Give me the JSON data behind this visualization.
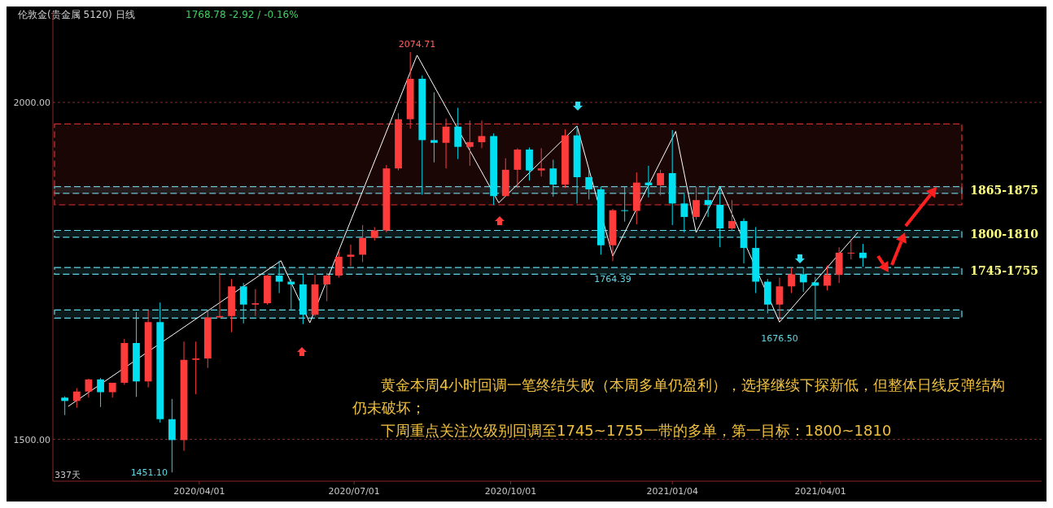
{
  "chart_data": {
    "type": "candlestick",
    "title": "伦敦金(贵金属 5120)  日线",
    "subtitle": "1768.78  -2.92 / -0.16%",
    "xlim": [
      "2020-01-06",
      "2021-08-09"
    ],
    "xticks": [
      {
        "value": "2020-04-01",
        "label": "2020/04/01"
      },
      {
        "value": "2020-07-01",
        "label": "2020/07/01"
      },
      {
        "value": "2020-10-01",
        "label": "2020/10/01"
      },
      {
        "value": "2021-01-04",
        "label": "2021/01/04"
      },
      {
        "value": "2021-04-01",
        "label": "2021/04/01"
      }
    ],
    "ylim": [
      1438,
      2135
    ],
    "yticks": [
      {
        "value": 1500,
        "label": "1500.00"
      },
      {
        "value": 2000,
        "label": "2000.00"
      }
    ],
    "grid": "y",
    "series": [
      {
        "x": [
          "2020-01-13",
          "2020-01-20",
          "2020-01-27",
          "2020-02-03",
          "2020-02-10",
          "2020-02-17",
          "2020-02-24",
          "2020-03-02",
          "2020-03-09",
          "2020-03-16",
          "2020-03-23",
          "2020-03-30",
          "2020-04-06",
          "2020-04-13",
          "2020-04-20",
          "2020-04-27",
          "2020-05-04",
          "2020-05-11",
          "2020-05-18",
          "2020-05-25",
          "2020-06-01",
          "2020-06-08",
          "2020-06-15",
          "2020-06-22",
          "2020-06-29",
          "2020-07-06",
          "2020-07-13",
          "2020-07-20",
          "2020-07-27",
          "2020-08-03",
          "2020-08-10",
          "2020-08-17",
          "2020-08-24",
          "2020-08-31",
          "2020-09-07",
          "2020-09-14",
          "2020-09-21",
          "2020-09-28",
          "2020-10-05",
          "2020-10-12",
          "2020-10-19",
          "2020-10-26",
          "2020-11-02",
          "2020-11-09",
          "2020-11-16",
          "2020-11-23",
          "2020-11-30",
          "2020-12-07",
          "2020-12-14",
          "2020-12-21",
          "2020-12-28",
          "2021-01-04",
          "2021-01-11",
          "2021-01-18",
          "2021-01-25",
          "2021-02-01",
          "2021-02-08",
          "2021-02-15",
          "2021-02-22",
          "2021-03-01",
          "2021-03-08",
          "2021-03-15",
          "2021-03-22",
          "2021-03-29",
          "2021-04-05",
          "2021-04-12",
          "2021-04-19",
          "2021-04-26"
        ],
        "ohlc": [
          [
            1562,
            1564,
            1536,
            1557
          ],
          [
            1557,
            1576,
            1547,
            1571
          ],
          [
            1571,
            1590,
            1562,
            1589
          ],
          [
            1589,
            1591,
            1548,
            1570
          ],
          [
            1570,
            1584,
            1562,
            1584
          ],
          [
            1584,
            1649,
            1581,
            1643
          ],
          [
            1643,
            1689,
            1563,
            1586
          ],
          [
            1586,
            1692,
            1577,
            1674
          ],
          [
            1674,
            1703,
            1525,
            1530
          ],
          [
            1530,
            1560,
            1451,
            1499
          ],
          [
            1499,
            1645,
            1483,
            1618
          ],
          [
            1618,
            1645,
            1567,
            1620
          ],
          [
            1620,
            1690,
            1606,
            1681
          ],
          [
            1681,
            1747,
            1680,
            1683
          ],
          [
            1683,
            1738,
            1659,
            1727
          ],
          [
            1727,
            1732,
            1672,
            1700
          ],
          [
            1700,
            1723,
            1683,
            1702
          ],
          [
            1702,
            1744,
            1700,
            1743
          ],
          [
            1743,
            1765,
            1717,
            1734
          ],
          [
            1734,
            1738,
            1693,
            1730
          ],
          [
            1730,
            1745,
            1671,
            1685
          ],
          [
            1685,
            1744,
            1683,
            1730
          ],
          [
            1730,
            1747,
            1705,
            1743
          ],
          [
            1743,
            1779,
            1740,
            1771
          ],
          [
            1771,
            1789,
            1757,
            1774
          ],
          [
            1774,
            1818,
            1763,
            1799
          ],
          [
            1799,
            1815,
            1795,
            1810
          ],
          [
            1810,
            1907,
            1807,
            1902
          ],
          [
            1902,
            1984,
            1899,
            1975
          ],
          [
            1975,
            2074.71,
            1961,
            2035
          ],
          [
            2035,
            2040,
            1863,
            1944
          ],
          [
            1944,
            2015,
            1911,
            1940
          ],
          [
            1940,
            1976,
            1902,
            1964
          ],
          [
            1964,
            1992,
            1916,
            1934
          ],
          [
            1934,
            1973,
            1906,
            1941
          ],
          [
            1941,
            1973,
            1932,
            1950
          ],
          [
            1950,
            1954,
            1848,
            1861
          ],
          [
            1861,
            1917,
            1860,
            1900
          ],
          [
            1900,
            1932,
            1873,
            1930
          ],
          [
            1930,
            1933,
            1884,
            1899
          ],
          [
            1899,
            1932,
            1890,
            1902
          ],
          [
            1902,
            1915,
            1860,
            1878
          ],
          [
            1878,
            1960,
            1873,
            1951
          ],
          [
            1951,
            1965,
            1850,
            1889
          ],
          [
            1889,
            1900,
            1856,
            1871
          ],
          [
            1871,
            1875,
            1774,
            1788
          ],
          [
            1788,
            1842,
            1764.39,
            1840
          ],
          [
            1840,
            1875,
            1823,
            1839
          ],
          [
            1839,
            1896,
            1819,
            1881
          ],
          [
            1881,
            1906,
            1859,
            1877
          ],
          [
            1877,
            1900,
            1862,
            1895
          ],
          [
            1895,
            1959,
            1818,
            1850
          ],
          [
            1850,
            1864,
            1807,
            1830
          ],
          [
            1830,
            1875,
            1826,
            1855
          ],
          [
            1855,
            1875,
            1830,
            1848
          ],
          [
            1848,
            1875,
            1785,
            1813
          ],
          [
            1813,
            1855,
            1809,
            1824
          ],
          [
            1824,
            1828,
            1761,
            1784
          ],
          [
            1784,
            1815,
            1717,
            1734
          ],
          [
            1734,
            1738,
            1687,
            1700
          ],
          [
            1700,
            1740,
            1676.5,
            1727
          ],
          [
            1727,
            1755,
            1717,
            1745
          ],
          [
            1745,
            1755,
            1719,
            1733
          ],
          [
            1733,
            1741,
            1677,
            1728
          ],
          [
            1728,
            1758,
            1721,
            1744
          ],
          [
            1744,
            1785,
            1732,
            1777
          ],
          [
            1777,
            1797,
            1767,
            1777
          ],
          [
            1777,
            1790,
            1756,
            1769
          ]
        ],
        "colors": [
          "#00e0f0",
          "#ff3c3c",
          "#ff3c3c",
          "#00e0f0",
          "#ff3c3c",
          "#ff3c3c",
          "#00e0f0",
          "#ff3c3c",
          "#00e0f0",
          "#00e0f0",
          "#ff3c3c",
          "#ff3c3c",
          "#ff3c3c",
          "#ff3c3c",
          "#ff3c3c",
          "#00e0f0",
          "#ff3c3c",
          "#ff3c3c",
          "#00e0f0",
          "#00e0f0",
          "#00e0f0",
          "#ff3c3c",
          "#ff3c3c",
          "#ff3c3c",
          "#ff3c3c",
          "#ff3c3c",
          "#ff3c3c",
          "#ff3c3c",
          "#ff3c3c",
          "#ff3c3c",
          "#00e0f0",
          "#00e0f0",
          "#ff3c3c",
          "#00e0f0",
          "#ff3c3c",
          "#ff3c3c",
          "#00e0f0",
          "#ff3c3c",
          "#ff3c3c",
          "#00e0f0",
          "#ff3c3c",
          "#00e0f0",
          "#ff3c3c",
          "#00e0f0",
          "#00e0f0",
          "#00e0f0",
          "#ff3c3c",
          "#00e0f0",
          "#ff3c3c",
          "#00e0f0",
          "#ff3c3c",
          "#00e0f0",
          "#00e0f0",
          "#ff3c3c",
          "#00e0f0",
          "#00e0f0",
          "#ff3c3c",
          "#00e0f0",
          "#00e0f0",
          "#00e0f0",
          "#ff3c3c",
          "#ff3c3c",
          "#00e0f0",
          "#00e0f0",
          "#ff3c3c",
          "#ff3c3c",
          "#ff3c3c",
          "#00e0f0"
        ]
      },
      {
        "type": "line",
        "color": "#ffffff",
        "marker": "none",
        "line_style": "solid",
        "x": [
          "2020-01-15",
          "2020-05-19",
          "2020-06-05",
          "2020-08-07",
          "2020-09-24",
          "2020-11-09",
          "2020-11-30",
          "2021-01-06",
          "2021-01-18",
          "2021-02-01",
          "2021-03-08",
          "2021-04-23"
        ],
        "values": [
          1549,
          1765,
          1673,
          2070,
          1851,
          1965,
          1772,
          1957,
          1807,
          1875,
          1674,
          1807
        ]
      }
    ],
    "bands": [
      {
        "axis": "y",
        "from": 1865,
        "to": 1875,
        "label": "1865-1875",
        "color": "#5fd7e6"
      },
      {
        "axis": "y",
        "from": 1800,
        "to": 1810,
        "label": "1800-1810",
        "color": "#5fd7e6"
      },
      {
        "axis": "y",
        "from": 1745,
        "to": 1755,
        "label": "1745-1755",
        "color": "#5fd7e6"
      },
      {
        "axis": "y",
        "from": 1680,
        "to": 1692,
        "label": null,
        "color": "#5fd7e6"
      },
      {
        "axis": "y",
        "from": 1848,
        "to": 1968,
        "label": null,
        "color": "#e03030"
      }
    ],
    "annotations": [
      {
        "text": "2074.71",
        "x": "2020-08-07",
        "y": 2074.71
      },
      {
        "text": "1451.10",
        "x": "2020-03-16",
        "y": 1451.1
      },
      {
        "text": "1764.39",
        "x": "2020-11-30",
        "y": 1764.39
      },
      {
        "text": "1676.50",
        "x": "2021-03-08",
        "y": 1676.5
      },
      "337天",
      "黄金本周4小时回调一笔终结失败（本周多单仍盈利），选择继续下探新低，但整体日线反弹结构仍未破坏；",
      "下周重点关注次级别回调至1745~1755一带的多单，第一目标：1800~1810"
    ]
  }
}
